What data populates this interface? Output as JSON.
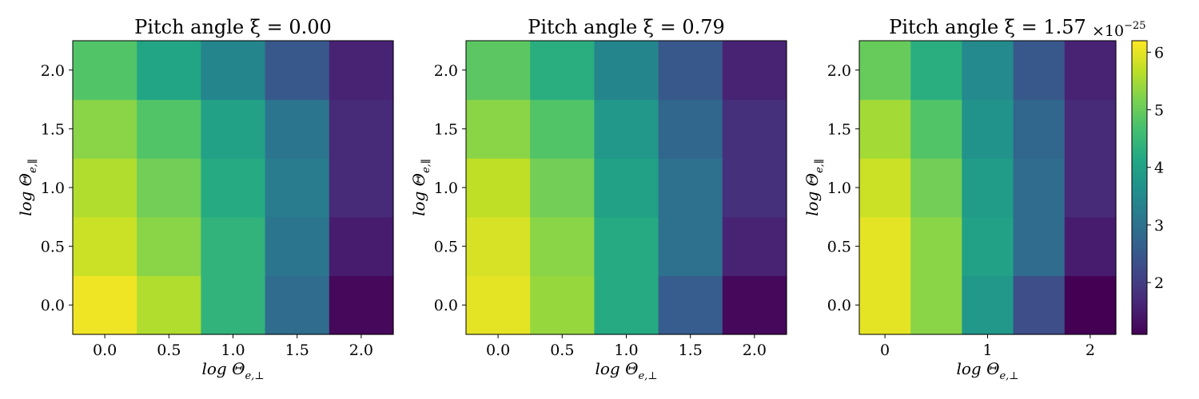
{
  "chart_data": [
    {
      "type": "heatmap",
      "title": "Pitch angle ξ = 0.00",
      "xlabel": "log Θ",
      "xlabel_subscript": "e,⊥",
      "ylabel": "log Θ",
      "ylabel_subscript": "e,∥",
      "x": [
        0.0,
        0.5,
        1.0,
        1.5,
        2.0
      ],
      "y": [
        0.0,
        0.5,
        1.0,
        1.5,
        2.0
      ],
      "x_tick_labels": [
        "0.0",
        "0.5",
        "1.0",
        "1.5",
        "2.0"
      ],
      "y_tick_labels": [
        "0.0",
        "0.5",
        "1.0",
        "1.5",
        "2.0"
      ],
      "values_scale": "1e-25",
      "values": [
        [
          6.1,
          5.6,
          4.4,
          2.9,
          1.2
        ],
        [
          5.8,
          5.3,
          4.4,
          3.1,
          1.5
        ],
        [
          5.6,
          5.1,
          4.2,
          3.2,
          1.7
        ],
        [
          5.3,
          4.8,
          4.0,
          3.1,
          1.7
        ],
        [
          4.8,
          4.1,
          3.4,
          2.5,
          1.6
        ]
      ]
    },
    {
      "type": "heatmap",
      "title": "Pitch angle ξ = 0.79",
      "xlabel": "log Θ",
      "xlabel_subscript": "e,⊥",
      "ylabel": "log Θ",
      "ylabel_subscript": "e,∥",
      "x": [
        0.0,
        0.5,
        1.0,
        1.5,
        2.0
      ],
      "y": [
        0.0,
        0.5,
        1.0,
        1.5,
        2.0
      ],
      "x_tick_labels": [
        "0.0",
        "0.5",
        "1.0",
        "1.5",
        "2.0"
      ],
      "y_tick_labels": [
        "0.0",
        "0.5",
        "1.0",
        "1.5",
        "2.0"
      ],
      "values_scale": "1e-25",
      "values": [
        [
          6.0,
          5.4,
          4.2,
          2.6,
          1.2
        ],
        [
          5.9,
          5.3,
          4.2,
          3.0,
          1.6
        ],
        [
          5.7,
          5.1,
          4.0,
          3.0,
          1.8
        ],
        [
          5.3,
          4.8,
          3.8,
          2.8,
          1.8
        ],
        [
          4.9,
          4.3,
          3.4,
          2.5,
          1.6
        ]
      ]
    },
    {
      "type": "heatmap",
      "title": "Pitch angle ξ = 1.57",
      "xlabel": "log Θ",
      "xlabel_subscript": "e,⊥",
      "ylabel": "log Θ",
      "ylabel_subscript": "e,∥",
      "x": [
        0.0,
        0.5,
        1.0,
        1.5,
        2.0
      ],
      "y": [
        0.0,
        0.5,
        1.0,
        1.5,
        2.0
      ],
      "x_tick_values": [
        0,
        1,
        2
      ],
      "x_tick_labels": [
        "0",
        "1",
        "2"
      ],
      "y_tick_labels": [
        "0.0",
        "0.5",
        "1.0",
        "1.5",
        "2.0"
      ],
      "values_scale": "1e-25",
      "values": [
        [
          6.0,
          5.3,
          3.8,
          2.3,
          1.1
        ],
        [
          6.0,
          5.3,
          4.0,
          2.9,
          1.5
        ],
        [
          5.8,
          5.1,
          3.9,
          2.9,
          1.7
        ],
        [
          5.5,
          4.8,
          3.7,
          2.8,
          1.7
        ],
        [
          5.0,
          4.3,
          3.5,
          2.5,
          1.6
        ]
      ]
    }
  ],
  "colorbar": {
    "vmin": 1.1,
    "vmax": 6.2,
    "ticks": [
      2,
      3,
      4,
      5,
      6
    ],
    "tick_labels": [
      "2",
      "3",
      "4",
      "5",
      "6"
    ],
    "multiplier_base": "×10",
    "multiplier_exponent": "−25",
    "colormap": "viridis"
  }
}
